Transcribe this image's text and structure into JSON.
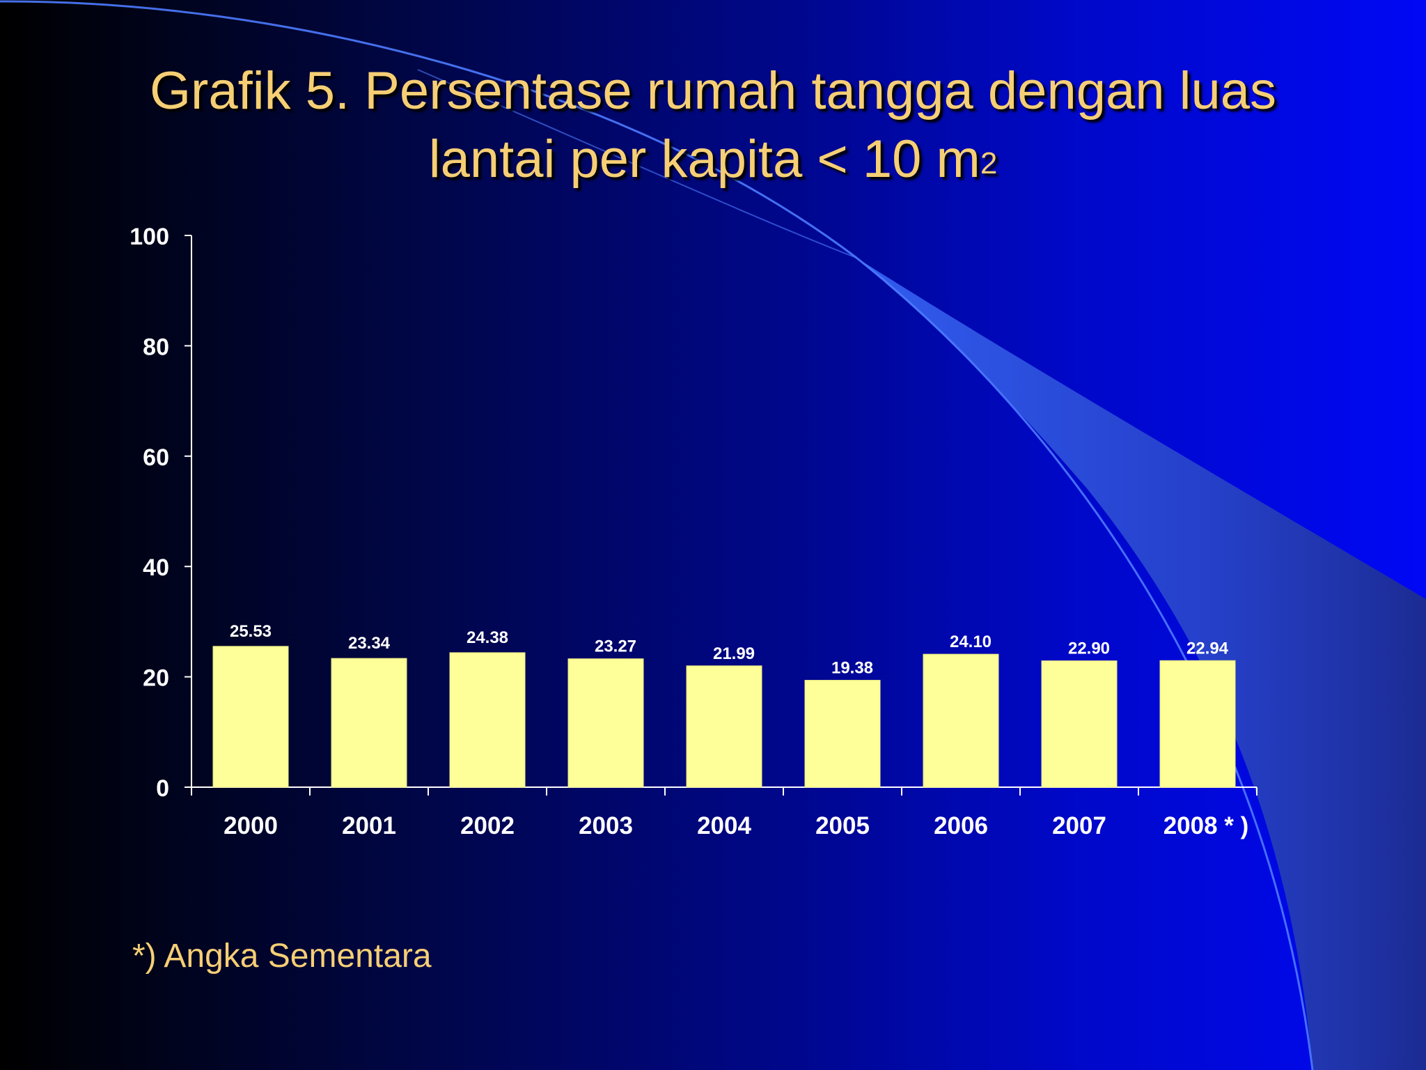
{
  "slide": {
    "title_line1": "Grafik 5. Persentase rumah tangga dengan luas",
    "title_line2": "lantai per kapita < 10 m",
    "title_superscript": "2",
    "footnote": "*) Angka Sementara"
  },
  "colors": {
    "title": "#f6cf75",
    "bar_fill": "#ffff99",
    "axis": "#ffffff",
    "tick_text": "#ffffff"
  },
  "chart_data": {
    "type": "bar",
    "title": "Grafik 5. Persentase rumah tangga dengan luas lantai per kapita < 10 m2",
    "categories": [
      "2000",
      "2001",
      "2002",
      "2003",
      "2004",
      "2005",
      "2006",
      "2007",
      "2008 * )"
    ],
    "values": [
      25.53,
      23.34,
      24.38,
      23.27,
      21.99,
      19.38,
      24.1,
      22.9,
      22.94
    ],
    "value_labels": [
      "25.53",
      "23.34",
      "24.38",
      "23.27",
      "21.99",
      "19.38",
      "24.10",
      "22.90",
      "22.94"
    ],
    "ylim": [
      0,
      100
    ],
    "yticks": [
      0,
      20,
      40,
      60,
      80,
      100
    ],
    "xlabel": "",
    "ylabel": "",
    "grid": false,
    "legend": "none"
  }
}
